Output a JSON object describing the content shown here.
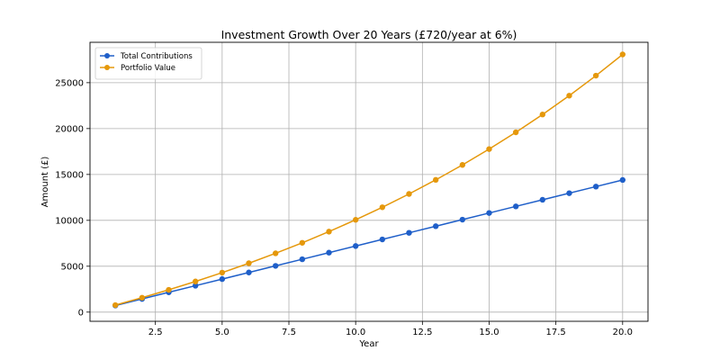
{
  "chart_data": {
    "type": "line",
    "title": "Investment Growth Over 20 Years (£720/year at 6%)",
    "xlabel": "Year",
    "ylabel": "Amount (£)",
    "xlim": [
      0.05,
      20.95
    ],
    "ylim": [
      -1000,
      29400
    ],
    "xticks": [
      2.5,
      5.0,
      7.5,
      10.0,
      12.5,
      15.0,
      17.5,
      20.0
    ],
    "xtick_labels": [
      "2.5",
      "5.0",
      "7.5",
      "10.0",
      "12.5",
      "15.0",
      "17.5",
      "20.0"
    ],
    "yticks": [
      0,
      5000,
      10000,
      15000,
      20000,
      25000
    ],
    "ytick_labels": [
      "0",
      "5000",
      "10000",
      "15000",
      "20000",
      "25000"
    ],
    "grid": true,
    "legend_position": "top-left",
    "x": [
      1,
      2,
      3,
      4,
      5,
      6,
      7,
      8,
      9,
      10,
      11,
      12,
      13,
      14,
      15,
      16,
      17,
      18,
      19,
      20
    ],
    "series": [
      {
        "name": "Total Contributions",
        "color": "#1f5fc9",
        "values": [
          720,
          1440,
          2160,
          2880,
          3600,
          4320,
          5040,
          5760,
          6480,
          7200,
          7920,
          8640,
          9360,
          10080,
          10800,
          11520,
          12240,
          12960,
          13680,
          14400
        ]
      },
      {
        "name": "Portfolio Value",
        "color": "#e5980b",
        "values": [
          763,
          1572,
          2430,
          3340,
          4303,
          5324,
          6406,
          7554,
          8770,
          10060,
          11427,
          12875,
          14411,
          16039,
          17765,
          19594,
          21533,
          23588,
          25767,
          28077
        ]
      }
    ]
  }
}
